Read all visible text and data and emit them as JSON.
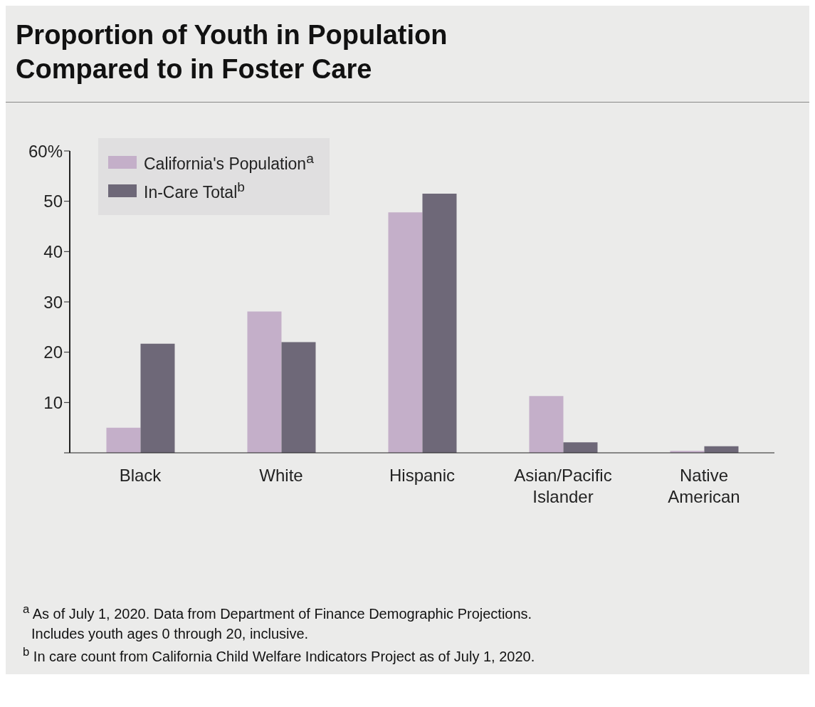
{
  "chart_data": {
    "type": "bar",
    "title": "Proportion of Youth in Population Compared to in Foster Care",
    "categories": [
      "Black",
      "White",
      "Hispanic",
      "Asian/Pacific Islander",
      "Native American"
    ],
    "series": [
      {
        "name": "California's Population$^{a}$",
        "color": "#c4afc9",
        "values": [
          5,
          28.1,
          47.8,
          11.3,
          0.4
        ]
      },
      {
        "name": "In-Care Total$^{b}$",
        "color": "#6e6878",
        "values": [
          21.7,
          22,
          51.5,
          2.1,
          1.3
        ]
      }
    ],
    "ylim": [
      0,
      60
    ],
    "yticks": [
      {
        "value": 0,
        "label": null
      },
      10,
      20,
      30,
      40,
      50,
      {
        "value": 60,
        "label": "60%"
      }
    ],
    "grid": false,
    "legend": "top left",
    "annotations": [
      "$^{a}$ As of July 1, 2020. Data from Department of Finance Demographic Projections. Includes youth ages 0 through 20, inclusive.",
      "$^{b}$ In care count from California Child Welfare Indicators Project as of July 1, 2020."
    ]
  }
}
